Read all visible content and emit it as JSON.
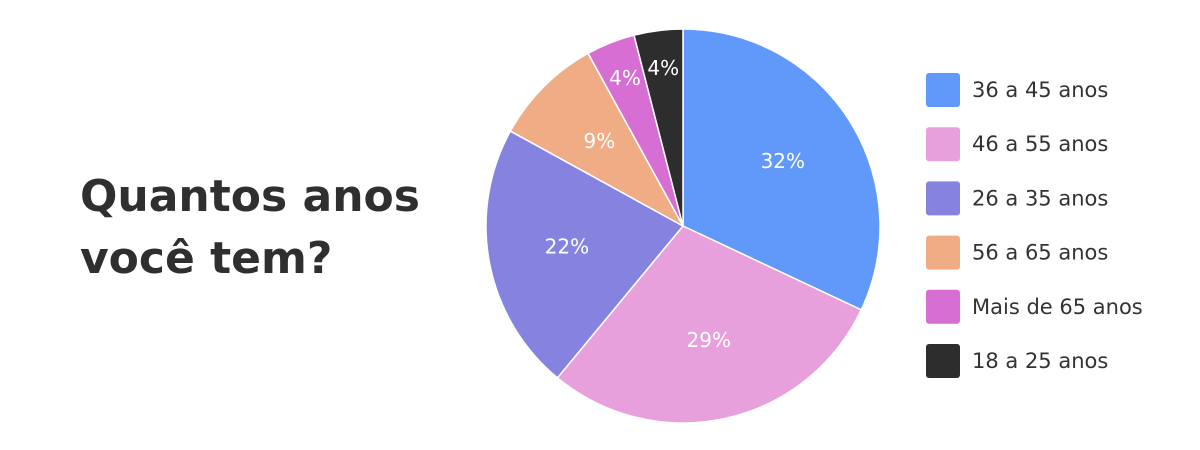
{
  "chart_data": {
    "type": "pie",
    "title": "Quantos anos você tem?",
    "categories": [
      "36 a 45 anos",
      "46 a 55 anos",
      "26 a 35 anos",
      "56 a 65 anos",
      "Mais de 65 anos",
      "18 a 25 anos"
    ],
    "values": [
      32,
      29,
      22,
      9,
      4,
      4
    ],
    "value_labels": [
      "32%",
      "29%",
      "22%",
      "9%",
      "4%",
      "4%"
    ],
    "colors": [
      "#6199fb",
      "#e7a0db",
      "#8683e0",
      "#f0ac85",
      "#d66ed3",
      "#2d2d2d"
    ],
    "legend": "right"
  }
}
